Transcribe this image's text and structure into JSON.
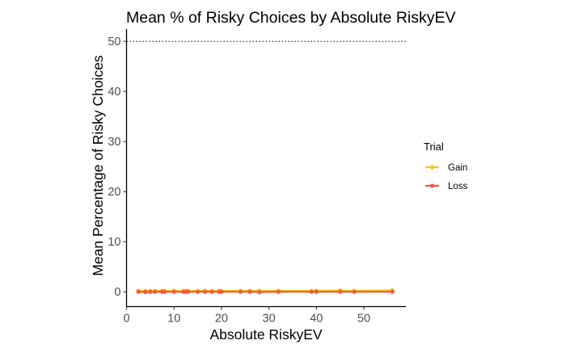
{
  "chart_data": {
    "type": "line",
    "title": "Mean % of Risky Choices by Absolute RiskyEV",
    "xlabel": "Absolute RiskyEV",
    "ylabel": "Mean Percentage of Risky Choices",
    "xlim": [
      0,
      58
    ],
    "ylim": [
      -2.5,
      52.5
    ],
    "xticks": [
      0,
      10,
      20,
      30,
      40,
      50
    ],
    "yticks": [
      0,
      10,
      20,
      30,
      40,
      50
    ],
    "reference_line": {
      "y": 50,
      "style": "dotted",
      "color": "#000000"
    },
    "grid": false,
    "legend": {
      "title": "Trial",
      "position": "right"
    },
    "series": [
      {
        "name": "Gain",
        "color": "#F5C518",
        "x": [
          2.5,
          4,
          5,
          6,
          7.5,
          8,
          10,
          12,
          12.5,
          13,
          15,
          16.5,
          18,
          19.5,
          20,
          24,
          26,
          28,
          32,
          39,
          40,
          45,
          48,
          56
        ],
        "y": [
          0.2,
          0.2,
          0.2,
          0.2,
          0.2,
          0.2,
          0.2,
          0.2,
          0.2,
          0.2,
          0.2,
          0.2,
          0.2,
          0.2,
          0.2,
          0.2,
          0.2,
          0.2,
          0.2,
          0.2,
          0.2,
          0.3,
          0.2,
          0.3
        ]
      },
      {
        "name": "Loss",
        "color": "#F05A3A",
        "x": [
          2.5,
          4,
          5,
          6,
          7.5,
          8,
          10,
          12,
          12.5,
          13,
          15,
          16.5,
          18,
          19.5,
          20,
          24,
          26,
          28,
          32,
          39,
          40,
          45,
          48,
          56
        ],
        "y": [
          0,
          -0.05,
          0,
          0,
          0,
          0,
          0,
          0,
          0,
          0,
          0,
          0,
          0,
          0,
          0,
          0,
          0,
          -0.05,
          0,
          0,
          0,
          0,
          0,
          0
        ]
      }
    ]
  }
}
